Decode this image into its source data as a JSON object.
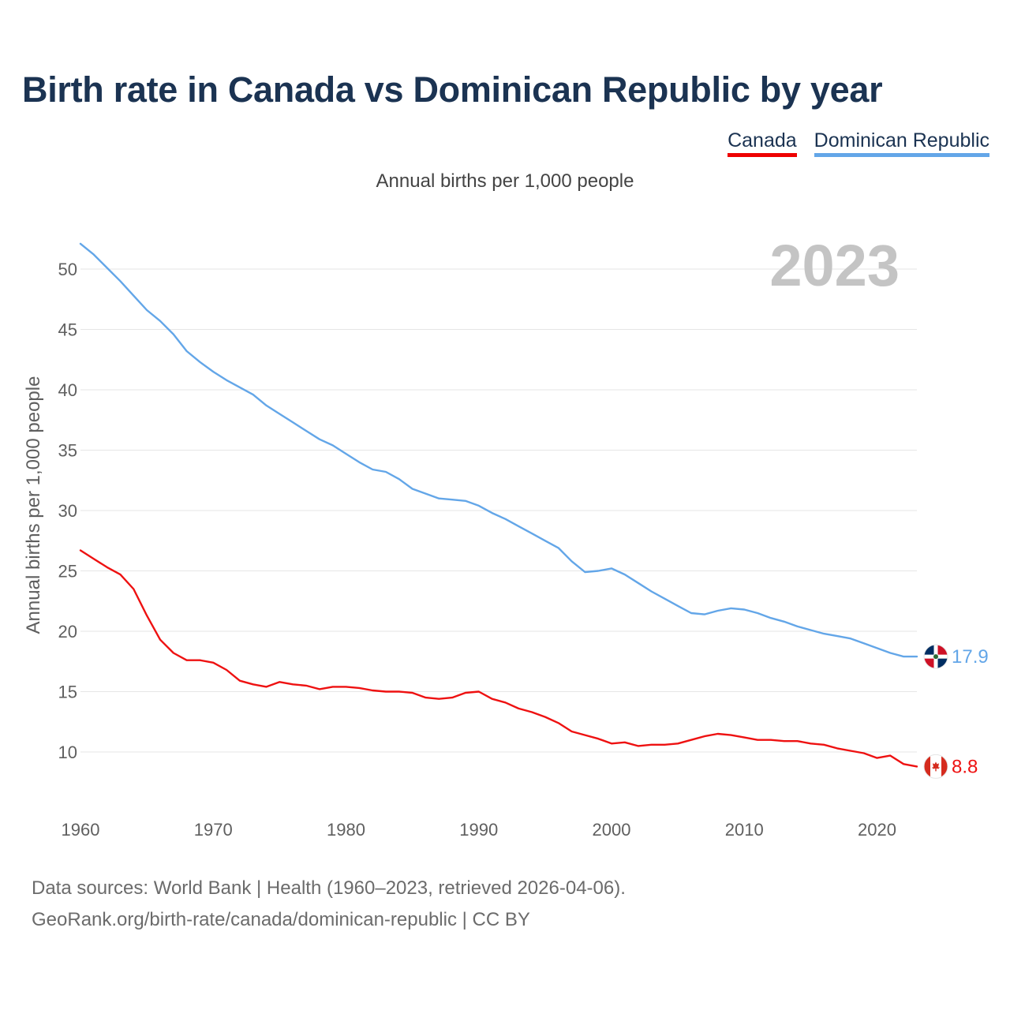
{
  "header": {
    "title": "Birth rate in Canada vs Dominican Republic by year",
    "subtitle": "Annual births per 1,000 people"
  },
  "legend": {
    "canada": "Canada",
    "dominican_republic": "Dominican Republic"
  },
  "footer": {
    "sources": "Data sources: World Bank | Health (1960–2023, retrieved 2026-04-06).",
    "credit": "GeoRank.org/birth-rate/canada/dominican-republic | CC BY"
  },
  "colors": {
    "canada": "#ee1111",
    "dominican_republic": "#63a6e8",
    "title": "#1b3352"
  },
  "chart_data": {
    "type": "line",
    "title": "Birth rate in Canada vs Dominican Republic by year",
    "ylabel": "Annual births per 1,000 people",
    "xlabel": "",
    "xlim": [
      1960,
      2023
    ],
    "ylim": [
      6,
      52
    ],
    "x_ticks": [
      1960,
      1970,
      1980,
      1990,
      2000,
      2010,
      2020
    ],
    "y_ticks": [
      10,
      15,
      20,
      25,
      30,
      35,
      40,
      45,
      50
    ],
    "current_year": "2023",
    "x": [
      1960,
      1961,
      1962,
      1963,
      1964,
      1965,
      1966,
      1967,
      1968,
      1969,
      1970,
      1971,
      1972,
      1973,
      1974,
      1975,
      1976,
      1977,
      1978,
      1979,
      1980,
      1981,
      1982,
      1983,
      1984,
      1985,
      1986,
      1987,
      1988,
      1989,
      1990,
      1991,
      1992,
      1993,
      1994,
      1995,
      1996,
      1997,
      1998,
      1999,
      2000,
      2001,
      2002,
      2003,
      2004,
      2005,
      2006,
      2007,
      2008,
      2009,
      2010,
      2011,
      2012,
      2013,
      2014,
      2015,
      2016,
      2017,
      2018,
      2019,
      2020,
      2021,
      2022,
      2023
    ],
    "series": [
      {
        "name": "Dominican Republic",
        "color": "#63a6e8",
        "end_label": "17.9",
        "values": [
          52.1,
          51.2,
          50.1,
          49.0,
          47.8,
          46.6,
          45.7,
          44.6,
          43.2,
          42.3,
          41.5,
          40.8,
          40.2,
          39.6,
          38.7,
          38.0,
          37.3,
          36.6,
          35.9,
          35.4,
          34.7,
          34.0,
          33.4,
          33.2,
          32.6,
          31.8,
          31.4,
          31.0,
          30.9,
          30.8,
          30.4,
          29.8,
          29.3,
          28.7,
          28.1,
          27.5,
          26.9,
          25.8,
          24.9,
          25.0,
          25.2,
          24.7,
          24.0,
          23.3,
          22.7,
          22.1,
          21.5,
          21.4,
          21.7,
          21.9,
          21.8,
          21.5,
          21.1,
          20.8,
          20.4,
          20.1,
          19.8,
          19.6,
          19.4,
          19.0,
          18.6,
          18.2,
          17.9,
          17.9
        ]
      },
      {
        "name": "Canada",
        "color": "#ee1111",
        "end_label": "8.8",
        "values": [
          26.7,
          26.0,
          25.3,
          24.7,
          23.5,
          21.3,
          19.3,
          18.2,
          17.6,
          17.6,
          17.4,
          16.8,
          15.9,
          15.6,
          15.4,
          15.8,
          15.6,
          15.5,
          15.2,
          15.4,
          15.4,
          15.3,
          15.1,
          15.0,
          15.0,
          14.9,
          14.5,
          14.4,
          14.5,
          14.9,
          15.0,
          14.4,
          14.1,
          13.6,
          13.3,
          12.9,
          12.4,
          11.7,
          11.4,
          11.1,
          10.7,
          10.8,
          10.5,
          10.6,
          10.6,
          10.7,
          11.0,
          11.3,
          11.5,
          11.4,
          11.2,
          11.0,
          11.0,
          10.9,
          10.9,
          10.7,
          10.6,
          10.3,
          10.1,
          9.9,
          9.5,
          9.7,
          9.0,
          8.8
        ]
      }
    ]
  }
}
